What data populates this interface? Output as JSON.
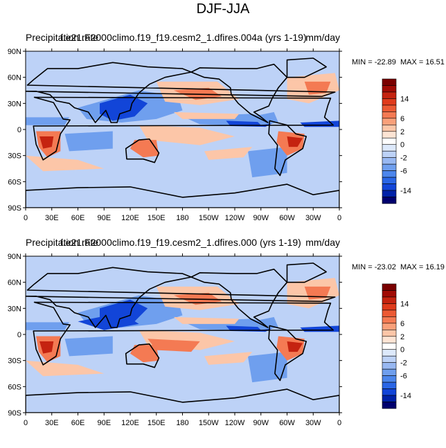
{
  "figure_title": "DJF-JJA",
  "panels": [
    {
      "left_title": "Precipitation rate",
      "center_title": "f.e21.F2000climo.f19_f19.cesm2_1.dfires.004a (yrs 1-19)",
      "units": "mm/day",
      "min_label": "MIN = -22.89",
      "max_label": "MAX =  16.51"
    },
    {
      "left_title": "Precipitation rate",
      "center_title": "f.e21.F2000climo.f19_f19.cesm2_1.dfires.000 (yrs 1-19)",
      "units": "mm/day",
      "min_label": "MIN = -23.02",
      "max_label": "MAX =  16.19"
    }
  ],
  "lon_ticks": [
    "0",
    "30E",
    "60E",
    "90E",
    "120E",
    "150E",
    "180",
    "150W",
    "120W",
    "90W",
    "60W",
    "30W",
    "0"
  ],
  "lat_ticks": [
    "90N",
    "60N",
    "30N",
    "0",
    "30S",
    "60S",
    "90S"
  ],
  "colorbar": {
    "colors": [
      "#00006e",
      "#0022a8",
      "#1245d8",
      "#2a66e6",
      "#4c86ec",
      "#6f9fee",
      "#98b8f2",
      "#bdd2f7",
      "#dde9fb",
      "#ffffff",
      "#fde4d4",
      "#fcc6a8",
      "#f9a07a",
      "#f47a53",
      "#ec5a34",
      "#df3b1c",
      "#c52310",
      "#a10b05",
      "#7a0000"
    ],
    "labels": [
      "14",
      "6",
      "2",
      "0",
      "-2",
      "-6",
      "-14"
    ]
  },
  "legend_colors": {
    "background": "#d6e6fb",
    "ocean_light": "#bdd2f7",
    "blue_mid": "#6f9fee",
    "blue_dark": "#1245d8",
    "red_light": "#fcc6a8",
    "red_mid": "#f47a53",
    "red_dark": "#c52310",
    "coast": "#000000"
  }
}
